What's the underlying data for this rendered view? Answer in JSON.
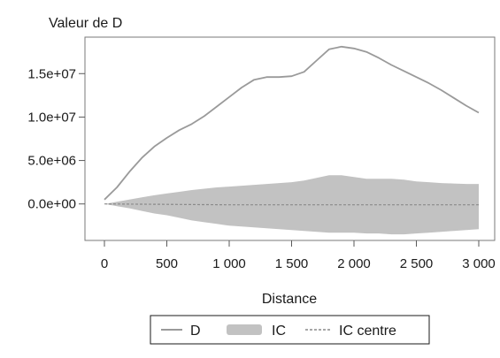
{
  "chart_data": {
    "type": "line",
    "title": "Valeur de D",
    "xlabel": "Distance",
    "ylabel": "",
    "xlim": [
      0,
      3000
    ],
    "ylim": [
      -4200000,
      19200000
    ],
    "x_ticks": [
      {
        "value": 0,
        "label": "0"
      },
      {
        "value": 500,
        "label": "500"
      },
      {
        "value": 1000,
        "label": "1 000"
      },
      {
        "value": 1500,
        "label": "1 500"
      },
      {
        "value": 2000,
        "label": "2 000"
      },
      {
        "value": 2500,
        "label": "2 500"
      },
      {
        "value": 3000,
        "label": "3 000"
      }
    ],
    "y_ticks": [
      {
        "value": 0,
        "label": "0.0e+00"
      },
      {
        "value": 5000000,
        "label": "5.0e+06"
      },
      {
        "value": 10000000,
        "label": "1.0e+07"
      },
      {
        "value": 15000000,
        "label": "1.5e+07"
      }
    ],
    "grid": false,
    "legend_position": "bottom",
    "legend": [
      {
        "label": "D",
        "style": "line",
        "color": "#9a9a9a"
      },
      {
        "label": "IC",
        "style": "band",
        "color": "#c2c2c2"
      },
      {
        "label": "IC centre",
        "style": "dashed",
        "color": "#8a8a8a"
      }
    ],
    "series": [
      {
        "name": "D",
        "kind": "line",
        "color": "#9a9a9a",
        "x": [
          0,
          100,
          200,
          300,
          400,
          500,
          600,
          700,
          800,
          900,
          1000,
          1100,
          1200,
          1300,
          1400,
          1500,
          1600,
          1700,
          1800,
          1900,
          2000,
          2100,
          2200,
          2300,
          2400,
          2500,
          2600,
          2700,
          2800,
          2900,
          3000
        ],
        "y": [
          500000,
          1900000,
          3700000,
          5300000,
          6600000,
          7600000,
          8500000,
          9200000,
          10100000,
          11200000,
          12300000,
          13400000,
          14300000,
          14600000,
          14600000,
          14700000,
          15200000,
          16500000,
          17800000,
          18100000,
          17900000,
          17500000,
          16800000,
          16000000,
          15300000,
          14600000,
          13900000,
          13100000,
          12200000,
          11300000,
          10500000
        ]
      },
      {
        "name": "IC",
        "kind": "band",
        "color": "#c2c2c2",
        "x": [
          0,
          100,
          200,
          300,
          400,
          500,
          600,
          700,
          800,
          900,
          1000,
          1100,
          1200,
          1300,
          1400,
          1500,
          1600,
          1700,
          1800,
          1900,
          2000,
          2100,
          2200,
          2300,
          2400,
          2500,
          2600,
          2700,
          2800,
          2900,
          3000
        ],
        "upper": [
          0,
          250000,
          500000,
          750000,
          1000000,
          1200000,
          1400000,
          1600000,
          1750000,
          1900000,
          2000000,
          2100000,
          2200000,
          2300000,
          2400000,
          2500000,
          2700000,
          3000000,
          3300000,
          3300000,
          3100000,
          2900000,
          2900000,
          2900000,
          2800000,
          2600000,
          2500000,
          2400000,
          2350000,
          2300000,
          2300000
        ],
        "lower": [
          0,
          -250000,
          -500000,
          -800000,
          -1100000,
          -1300000,
          -1600000,
          -1900000,
          -2100000,
          -2300000,
          -2500000,
          -2600000,
          -2700000,
          -2800000,
          -2900000,
          -3000000,
          -3100000,
          -3200000,
          -3300000,
          -3300000,
          -3300000,
          -3400000,
          -3400000,
          -3500000,
          -3500000,
          -3400000,
          -3300000,
          -3200000,
          -3100000,
          -3000000,
          -2900000
        ]
      },
      {
        "name": "IC centre",
        "kind": "dashed",
        "color": "#8a8a8a",
        "x": [
          0,
          500,
          1000,
          1500,
          2000,
          2500,
          3000
        ],
        "y": [
          0,
          -50000,
          -100000,
          -100000,
          -100000,
          -100000,
          -100000
        ]
      }
    ]
  }
}
